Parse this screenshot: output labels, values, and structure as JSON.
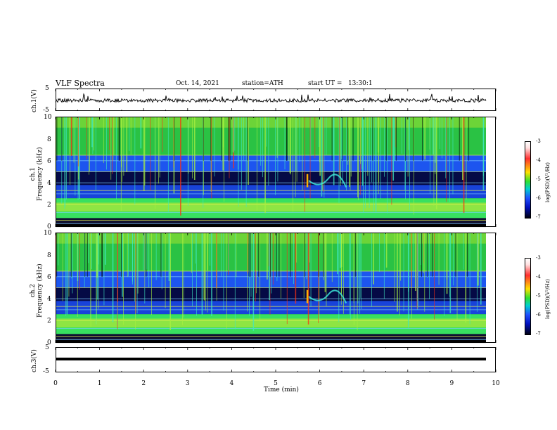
{
  "header": {
    "title": "VLF Spectra",
    "date": "Oct. 14, 2021",
    "station": "station=ATH",
    "start": "start UT =   13:30:1"
  },
  "panels": {
    "ch1_wave": {
      "label": "ch.1(V)",
      "ticks": [
        "5",
        "-5"
      ]
    },
    "ch1_spec": {
      "label": "ch.1\nFrequency (kHz)",
      "label_line1": "ch.1",
      "label_line2": "Frequency (kHz)",
      "ticks": [
        "10",
        "8",
        "6",
        "4",
        "2",
        "0"
      ]
    },
    "ch2_spec": {
      "label_line1": "ch.2",
      "label_line2": "Frequency (kHz)",
      "ticks": [
        "10",
        "8",
        "6",
        "4",
        "2",
        "0"
      ]
    },
    "ch3_wave": {
      "label": "ch.3(V)",
      "ticks": [
        "5",
        "-5"
      ]
    }
  },
  "colorbar": {
    "ticks": [
      "-3",
      "-4",
      "-5",
      "-6",
      "-7"
    ],
    "label": "log(PSD)(V²/Hz)"
  },
  "chart_data": {
    "type": "heatmap",
    "title": "VLF Spectra",
    "xlabel": "Time (min)",
    "xticks": [
      "0",
      "1",
      "2",
      "3",
      "4",
      "5",
      "6",
      "7",
      "8",
      "9",
      "10"
    ],
    "xlim": [
      0,
      10
    ],
    "ylim": [
      0,
      10
    ],
    "ylabel": "Frequency (kHz)",
    "colorbar_range": [
      -7,
      -3
    ],
    "colors": {
      "background": "#0a1460",
      "noise": "#30e040",
      "bands": "#2a8cff",
      "line": "#000000"
    }
  }
}
